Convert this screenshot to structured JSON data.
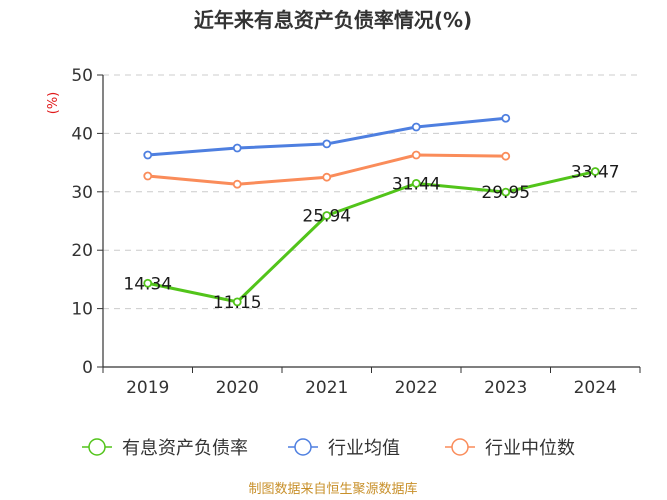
{
  "chart_data": {
    "type": "line",
    "title": "近年来有息资产负债率情况(%)",
    "ylabel": "(%)",
    "xlabel": "",
    "ylim": [
      0,
      50
    ],
    "yticks": [
      0,
      10,
      20,
      30,
      40,
      50
    ],
    "categories": [
      "2019",
      "2020",
      "2021",
      "2022",
      "2023",
      "2024"
    ],
    "grid": true,
    "legend_position": "bottom",
    "series": [
      {
        "name": "有息资产负债率",
        "color": "#52c41a",
        "values": [
          14.34,
          11.15,
          25.94,
          31.44,
          29.95,
          33.47
        ],
        "labels": [
          "14.34",
          "11.15",
          "25.94",
          "31.44",
          "29.95",
          "33.47"
        ]
      },
      {
        "name": "行业均值",
        "color": "#4e7fe0",
        "values": [
          36.3,
          37.5,
          38.2,
          41.1,
          42.6,
          null
        ]
      },
      {
        "name": "行业中位数",
        "color": "#fa8c5a",
        "values": [
          32.7,
          31.3,
          32.5,
          36.3,
          36.1,
          null
        ]
      }
    ],
    "source": "制图数据来自恒生聚源数据库"
  }
}
